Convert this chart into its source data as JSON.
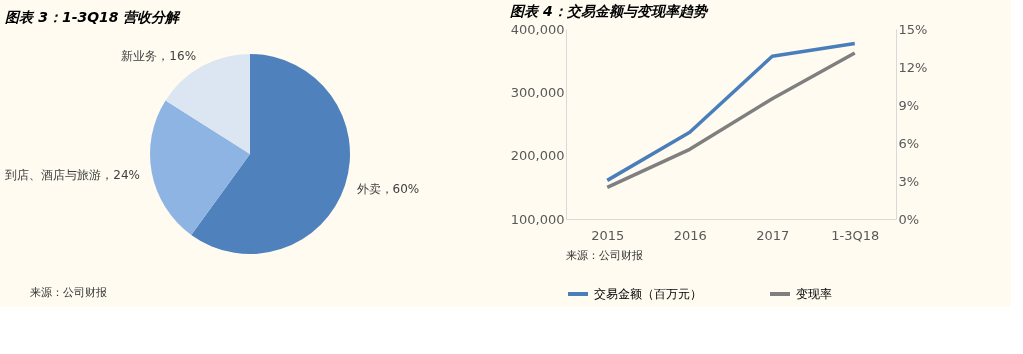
{
  "chart_data": [
    {
      "type": "pie",
      "title": "图表 3：1-3Q18 营收分解",
      "categories": [
        "外卖",
        "到店、酒店与旅游",
        "新业务"
      ],
      "values": [
        60,
        24,
        16
      ],
      "colors": [
        "#4f81bd",
        "#8eb4e3",
        "#dce6f2"
      ],
      "value_labels": [
        "60%",
        "24%",
        "16%"
      ],
      "annotations": [
        "来源：公司财报"
      ]
    },
    {
      "type": "line",
      "title": "图表 4：交易金额与变现率趋势",
      "categories": [
        "2015",
        "2016",
        "2017",
        "1-3Q18"
      ],
      "series": [
        {
          "name": "交易金额（百万元）",
          "color": "#4a7ebb",
          "values": [
            161000,
            237000,
            357000,
            377000
          ]
        },
        {
          "name": "变现率",
          "color": "#7f7f7f",
          "values": [
            2.5,
            5.5,
            9.5,
            13.1
          ],
          "axis": "y2"
        }
      ],
      "ylim": [
        100000,
        400000
      ],
      "yticks": [
        {
          "value": 100000,
          "label": "100,000"
        },
        {
          "value": 200000,
          "label": "200,000"
        },
        {
          "value": 300000,
          "label": "300,000"
        },
        {
          "value": 400000,
          "label": "400,000"
        }
      ],
      "y2lim": [
        0,
        15
      ],
      "y2ticks": [
        {
          "value": 0,
          "label": "0%"
        },
        {
          "value": 3,
          "label": "3%"
        },
        {
          "value": 6,
          "label": "6%"
        },
        {
          "value": 9,
          "label": "9%"
        },
        {
          "value": 12,
          "label": "12%"
        },
        {
          "value": 15,
          "label": "15%"
        }
      ],
      "grid": false,
      "legend": "bottom",
      "annotations": [
        "来源：公司财报"
      ]
    }
  ]
}
